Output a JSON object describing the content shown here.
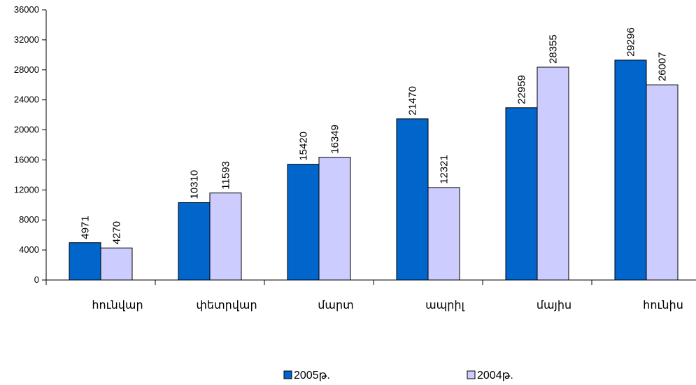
{
  "chart_data": {
    "type": "bar",
    "categories": [
      "հունվար",
      "փետրվար",
      "մարտ",
      "ապրիլ",
      "մայիս",
      "հունիս"
    ],
    "series": [
      {
        "name": "2005թ.",
        "values": [
          4971,
          10310,
          15420,
          21470,
          22959,
          29296
        ],
        "color": "#0066cc"
      },
      {
        "name": "2004թ.",
        "values": [
          4270,
          11593,
          16349,
          12321,
          28355,
          26007
        ],
        "color": "#ccccff"
      }
    ],
    "yticks": [
      0,
      4000,
      8000,
      12000,
      16000,
      20000,
      24000,
      28000,
      32000,
      36000
    ],
    "ylim": [
      0,
      36000
    ],
    "title": "",
    "xlabel": "",
    "ylabel": "",
    "grid": false,
    "legend_position": "bottom"
  }
}
